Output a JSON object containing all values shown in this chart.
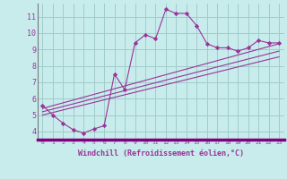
{
  "bg_color": "#c8ecec",
  "grid_color": "#a0cccc",
  "line_color": "#993399",
  "marker_color": "#993399",
  "xlabel": "Windchill (Refroidissement éolien,°C)",
  "xlim": [
    -0.5,
    23.5
  ],
  "ylim": [
    3.5,
    11.8
  ],
  "yticks": [
    4,
    5,
    6,
    7,
    8,
    9,
    10,
    11
  ],
  "xticks": [
    0,
    1,
    2,
    3,
    4,
    5,
    6,
    7,
    8,
    9,
    10,
    11,
    12,
    13,
    14,
    15,
    16,
    17,
    18,
    19,
    20,
    21,
    22,
    23
  ],
  "series1_x": [
    0,
    1,
    2,
    3,
    4,
    5,
    6,
    7,
    8,
    9,
    10,
    11,
    12,
    13,
    14,
    15,
    16,
    17,
    18,
    19,
    20,
    21,
    22,
    23
  ],
  "series1_y": [
    5.6,
    5.0,
    4.5,
    4.1,
    3.9,
    4.15,
    4.35,
    7.5,
    6.55,
    9.4,
    9.9,
    9.65,
    11.45,
    11.2,
    11.2,
    10.45,
    9.35,
    9.1,
    9.1,
    8.9,
    9.1,
    9.55,
    9.4,
    9.4
  ],
  "series2_x": [
    0,
    23
  ],
  "series2_y": [
    5.4,
    9.35
  ],
  "series3_x": [
    0,
    23
  ],
  "series3_y": [
    5.2,
    8.9
  ],
  "series4_x": [
    0,
    23
  ],
  "series4_y": [
    5.0,
    8.55
  ],
  "xaxis_band_color": "#800080",
  "tick_color": "#993399",
  "xlabel_color": "#993399"
}
